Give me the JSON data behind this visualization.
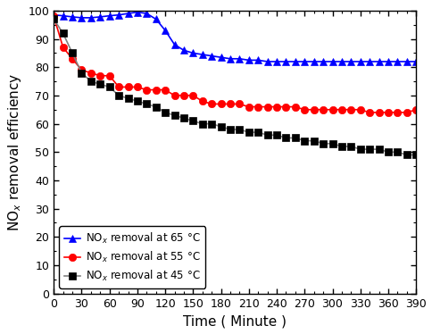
{
  "title": "",
  "xlabel": "Time ( Minute )",
  "ylabel": "NO$_x$ removal efficiency",
  "xlim": [
    0,
    390
  ],
  "ylim": [
    0,
    100
  ],
  "xticks": [
    0,
    30,
    60,
    90,
    120,
    150,
    180,
    210,
    240,
    270,
    300,
    330,
    360,
    390
  ],
  "yticks": [
    0,
    10,
    20,
    30,
    40,
    50,
    60,
    70,
    80,
    90,
    100
  ],
  "series": [
    {
      "label": "NO$_x$ removal at 65 °C",
      "color": "blue",
      "line_color": "blue",
      "marker": "^",
      "markersize": 6,
      "x": [
        0,
        10,
        20,
        30,
        40,
        50,
        60,
        70,
        80,
        90,
        100,
        110,
        120,
        130,
        140,
        150,
        160,
        170,
        180,
        190,
        200,
        210,
        220,
        230,
        240,
        250,
        260,
        270,
        280,
        290,
        300,
        310,
        320,
        330,
        340,
        350,
        360,
        370,
        380,
        390
      ],
      "y": [
        98.5,
        98.2,
        97.8,
        97.5,
        97.5,
        97.8,
        98.2,
        98.5,
        99.0,
        99.5,
        99.0,
        97.0,
        93.0,
        88.0,
        86.0,
        85.0,
        84.5,
        84.0,
        83.5,
        83.0,
        83.0,
        82.5,
        82.5,
        82.0,
        82.0,
        82.0,
        82.0,
        82.0,
        82.0,
        82.0,
        82.0,
        82.0,
        82.0,
        82.0,
        82.0,
        82.0,
        82.0,
        82.0,
        82.0,
        82.0
      ]
    },
    {
      "label": "NO$_x$ removal at 55 °C",
      "color": "red",
      "line_color": "red",
      "marker": "o",
      "markersize": 6,
      "x": [
        0,
        10,
        20,
        30,
        40,
        50,
        60,
        70,
        80,
        90,
        100,
        110,
        120,
        130,
        140,
        150,
        160,
        170,
        180,
        190,
        200,
        210,
        220,
        230,
        240,
        250,
        260,
        270,
        280,
        290,
        300,
        310,
        320,
        330,
        340,
        350,
        360,
        370,
        380,
        390
      ],
      "y": [
        98,
        87,
        83,
        79,
        78,
        77,
        77,
        73,
        73,
        73,
        72,
        72,
        72,
        70,
        70,
        70,
        68,
        67,
        67,
        67,
        67,
        66,
        66,
        66,
        66,
        66,
        66,
        65,
        65,
        65,
        65,
        65,
        65,
        65,
        64,
        64,
        64,
        64,
        64,
        65
      ]
    },
    {
      "label": "NO$_x$ removal at 45 °C",
      "color": "black",
      "line_color": "#808080",
      "marker": "s",
      "markersize": 6,
      "x": [
        0,
        10,
        20,
        30,
        40,
        50,
        60,
        70,
        80,
        90,
        100,
        110,
        120,
        130,
        140,
        150,
        160,
        170,
        180,
        190,
        200,
        210,
        220,
        230,
        240,
        250,
        260,
        270,
        280,
        290,
        300,
        310,
        320,
        330,
        340,
        350,
        360,
        370,
        380,
        390
      ],
      "y": [
        97,
        92,
        85,
        78,
        75,
        74,
        73,
        70,
        69,
        68,
        67,
        66,
        64,
        63,
        62,
        61,
        60,
        60,
        59,
        58,
        58,
        57,
        57,
        56,
        56,
        55,
        55,
        54,
        54,
        53,
        53,
        52,
        52,
        51,
        51,
        51,
        50,
        50,
        49,
        49
      ]
    }
  ],
  "legend_loc": "lower left",
  "linewidth": 1.2
}
